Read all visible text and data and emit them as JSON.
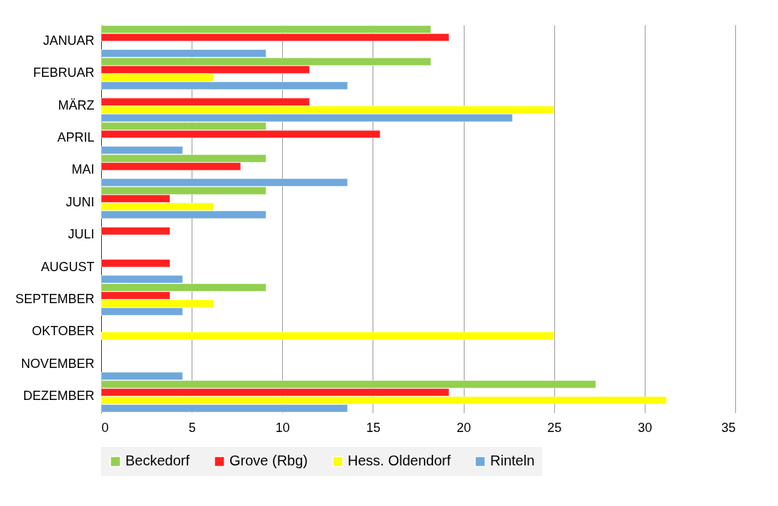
{
  "chart_data": {
    "type": "bar",
    "orientation": "horizontal",
    "categories": [
      "JANUAR",
      "FEBRUAR",
      "MÄRZ",
      "APRIL",
      "MAI",
      "JUNI",
      "JULI",
      "AUGUST",
      "SEPTEMBER",
      "OKTOBER",
      "NOVEMBER",
      "DEZEMBER"
    ],
    "series": [
      {
        "name": "Beckedorf",
        "color": "#92d050",
        "values": [
          18.2,
          18.2,
          null,
          9.1,
          9.1,
          9.1,
          null,
          null,
          9.1,
          null,
          null,
          27.3
        ]
      },
      {
        "name": "Grove (Rbg)",
        "color": "#ff2020",
        "values": [
          19.2,
          11.5,
          11.5,
          15.4,
          7.7,
          3.8,
          3.8,
          3.8,
          3.8,
          null,
          null,
          19.2
        ]
      },
      {
        "name": "Hess. Oldendorf",
        "color": "#ffff00",
        "values": [
          null,
          6.2,
          25,
          null,
          null,
          6.2,
          null,
          null,
          6.2,
          25,
          null,
          31.2
        ]
      },
      {
        "name": "Rinteln",
        "color": "#6fa8dc",
        "values": [
          9.1,
          13.6,
          22.7,
          4.5,
          13.6,
          9.1,
          null,
          4.5,
          4.5,
          null,
          4.5,
          13.6
        ]
      }
    ],
    "xlim": [
      0,
      35
    ],
    "xticks": [
      0,
      5,
      10,
      15,
      20,
      25,
      30,
      35
    ],
    "grid": "x",
    "legend": "bottom"
  }
}
